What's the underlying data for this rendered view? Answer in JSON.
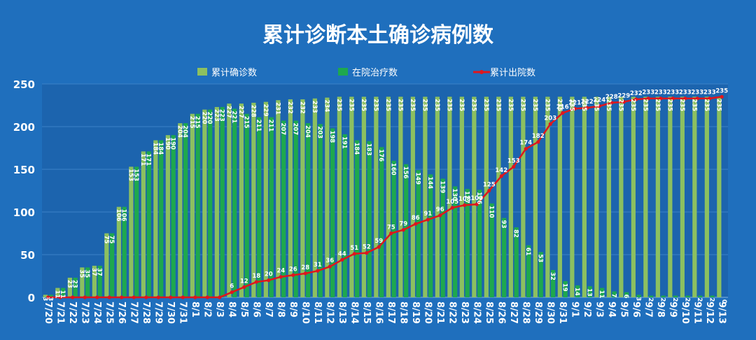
{
  "chart_data": {
    "type": "bar",
    "title": "累计诊断本土确诊病例数",
    "ylim": [
      0,
      250
    ],
    "yticks": [
      0,
      50,
      100,
      150,
      200,
      250
    ],
    "grid": true,
    "legend_position": "top",
    "colors": {
      "background": "#1f6fbd",
      "plot_area": "#1c64ae",
      "grid": "#3d82c8",
      "confirmed": "#8cc060",
      "in_treatment": "#1ea84e",
      "discharged": "#e0161c",
      "text": "#ffffff"
    },
    "categories": [
      "7/20",
      "7/21",
      "7/22",
      "7/23",
      "7/24",
      "7/25",
      "7/26",
      "7/27",
      "7/28",
      "7/29",
      "7/30",
      "7/31",
      "8/1",
      "8/2",
      "8/3",
      "8/4",
      "8/5",
      "8/6",
      "8/7",
      "8/8",
      "8/9",
      "8/10",
      "8/11",
      "8/12",
      "8/13",
      "8/14",
      "8/15",
      "8/16",
      "8/17",
      "8/18",
      "8/19",
      "8/20",
      "8/21",
      "8/22",
      "8/23",
      "8/24",
      "8/25",
      "8/26",
      "8/27",
      "8/28",
      "8/29",
      "8/30",
      "8/31",
      "9/1",
      "9/2",
      "9/3",
      "9/4",
      "9/5",
      "9/6",
      "9/7",
      "9/8",
      "9/9",
      "9/10",
      "9/11",
      "9/12",
      "9/13"
    ],
    "series": [
      {
        "name": "累计确诊数",
        "kind": "bar",
        "values": [
          3,
          11,
          23,
          35,
          37,
          75,
          106,
          153,
          171,
          184,
          190,
          204,
          215,
          220,
          223,
          227,
          227,
          228,
          229,
          231,
          232,
          232,
          233,
          234,
          235,
          235,
          235,
          235,
          235,
          235,
          235,
          235,
          235,
          235,
          235,
          235,
          235,
          235,
          235,
          235,
          235,
          235,
          235,
          235,
          235,
          235,
          235,
          235,
          235,
          235,
          235,
          235,
          235,
          235,
          235,
          235
        ],
        "labels": [
          "3",
          "11",
          "23",
          "35",
          "37",
          "75",
          "106",
          "153",
          "171",
          "184",
          "190",
          "204",
          "215",
          "220",
          "223",
          "227",
          "227",
          "228",
          "229",
          "231",
          "232",
          "232",
          "233",
          "234",
          "235",
          "235",
          "235",
          "235",
          "235",
          "235",
          "235",
          "235",
          "235",
          "235",
          "235",
          "235",
          "235",
          "235",
          "235",
          "235",
          "235",
          "235",
          "235",
          "235",
          "235",
          "235",
          "235",
          "235",
          "235",
          "235",
          "235",
          "235",
          "235",
          "235",
          "235",
          "235"
        ]
      },
      {
        "name": "在院治疗数",
        "kind": "bar",
        "values": [
          3,
          11,
          23,
          35,
          37,
          75,
          106,
          153,
          171,
          184,
          190,
          204,
          215,
          220,
          223,
          221,
          215,
          211,
          211,
          207,
          207,
          204,
          203,
          198,
          191,
          184,
          183,
          176,
          160,
          156,
          149,
          144,
          139,
          130,
          127,
          126,
          110,
          93,
          82,
          61,
          53,
          32,
          19,
          14,
          13,
          11,
          7,
          6,
          3,
          2,
          2,
          2,
          2,
          2,
          2,
          0
        ],
        "labels": [
          "3",
          "11",
          "23",
          "35",
          "37",
          "75",
          "106",
          "153",
          "171",
          "184",
          "190",
          "204",
          "215",
          "220",
          "223",
          "221",
          "215",
          "211",
          "211",
          "207",
          "207",
          "204",
          "203",
          "198",
          "191",
          "184",
          "183",
          "176",
          "160",
          "156",
          "149",
          "144",
          "139",
          "130",
          "127",
          "126",
          "110",
          "93",
          "82",
          "61",
          "53",
          "32",
          "19",
          "14",
          "13",
          "11",
          "7",
          "6",
          "3",
          "2",
          "2",
          "2",
          "2",
          "2",
          "2",
          "0"
        ]
      },
      {
        "name": "累计出院数",
        "kind": "line",
        "values": [
          0,
          0,
          0,
          0,
          0,
          0,
          0,
          0,
          0,
          0,
          0,
          0,
          0,
          0,
          0,
          6,
          12,
          18,
          20,
          24,
          26,
          28,
          31,
          36,
          44,
          51,
          52,
          59,
          75,
          79,
          86,
          91,
          96,
          105,
          108,
          109,
          125,
          142,
          153,
          174,
          182,
          203,
          216,
          221,
          222,
          224,
          228,
          229,
          232,
          233,
          233,
          233,
          233,
          233,
          233,
          235
        ],
        "labels": [
          "",
          "",
          "",
          "",
          "",
          "",
          "",
          "",
          "",
          "",
          "",
          "",
          "",
          "",
          "",
          "6",
          "12",
          "18",
          "20",
          "24",
          "26",
          "28",
          "31",
          "36",
          "44",
          "51",
          "52",
          "59",
          "75",
          "79",
          "86",
          "91",
          "96",
          "105",
          "108",
          "109",
          "125",
          "142",
          "153",
          "174",
          "182",
          "203",
          "216",
          "221",
          "222",
          "224",
          "228",
          "229",
          "232",
          "233",
          "233",
          "233",
          "233",
          "233",
          "233",
          "235"
        ]
      }
    ]
  }
}
